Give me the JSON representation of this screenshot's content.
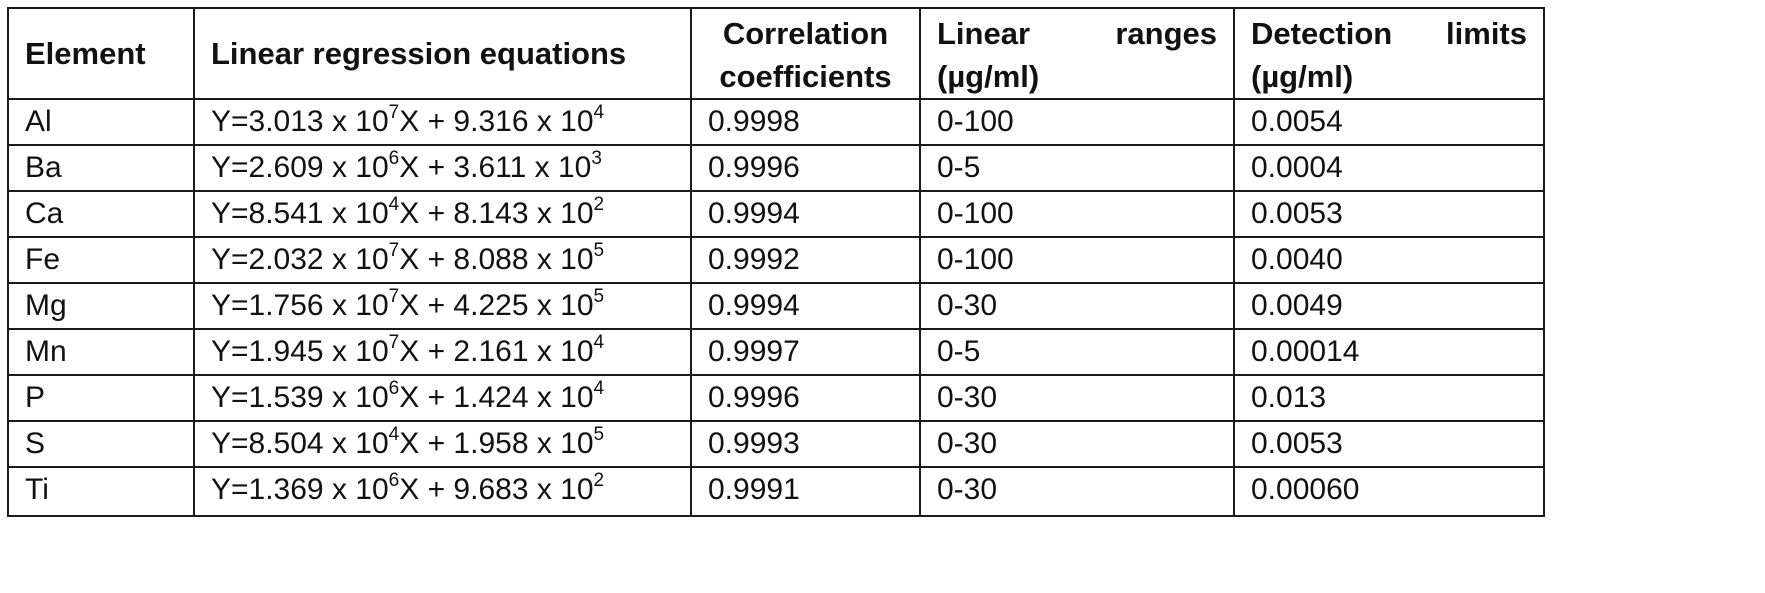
{
  "table": {
    "headers": {
      "element": "Element",
      "equation": "Linear regression equations",
      "correlation_line1": "Correlation",
      "correlation_line2": "coefficients",
      "range_word1": "Linear",
      "range_word2": "ranges",
      "range_unit": "(µg/ml)",
      "detection_word1": "Detection",
      "detection_word2": "limits",
      "detection_unit": "(µg/ml)"
    },
    "rows": [
      {
        "element": "Al",
        "eq_a": "Y=3.013 x 10",
        "exp1": "7",
        "eq_b": "X + 9.316 x 10",
        "exp2": "4",
        "correlation": "0.9998",
        "range": "0-100",
        "detection": "0.0054"
      },
      {
        "element": "Ba",
        "eq_a": "Y=2.609 x 10",
        "exp1": "6",
        "eq_b": "X + 3.611 x 10",
        "exp2": "3",
        "correlation": "0.9996",
        "range": "0-5",
        "detection": "0.0004"
      },
      {
        "element": "Ca",
        "eq_a": "Y=8.541 x 10",
        "exp1": "4",
        "eq_b": "X + 8.143 x 10",
        "exp2": "2",
        "correlation": "0.9994",
        "range": "0-100",
        "detection": "0.0053"
      },
      {
        "element": "Fe",
        "eq_a": "Y=2.032 x 10",
        "exp1": "7",
        "eq_b": "X + 8.088 x 10",
        "exp2": "5",
        "correlation": "0.9992",
        "range": "0-100",
        "detection": "0.0040"
      },
      {
        "element": "Mg",
        "eq_a": "Y=1.756 x 10",
        "exp1": "7",
        "eq_b": "X + 4.225 x 10",
        "exp2": "5",
        "correlation": "0.9994",
        "range": "0-30",
        "detection": "0.0049"
      },
      {
        "element": "Mn",
        "eq_a": "Y=1.945 x 10",
        "exp1": "7",
        "eq_b": "X + 2.161 x 10",
        "exp2": "4",
        "correlation": "0.9997",
        "range": "0-5",
        "detection": "0.00014"
      },
      {
        "element": "P",
        "eq_a": "Y=1.539 x 10",
        "exp1": "6",
        "eq_b": "X + 1.424 x 10",
        "exp2": "4",
        "correlation": "0.9996",
        "range": "0-30",
        "detection": "0.013"
      },
      {
        "element": "S",
        "eq_a": "Y=8.504 x 10",
        "exp1": "4",
        "eq_b": "X + 1.958 x 10",
        "exp2": "5",
        "correlation": "0.9993",
        "range": "0-30",
        "detection": "0.0053"
      },
      {
        "element": "Ti",
        "eq_a": "Y=1.369 x 10",
        "exp1": "6",
        "eq_b": "X + 9.683 x 10",
        "exp2": "2",
        "correlation": "0.9991",
        "range": "0-30",
        "detection": "0.00060"
      }
    ]
  }
}
